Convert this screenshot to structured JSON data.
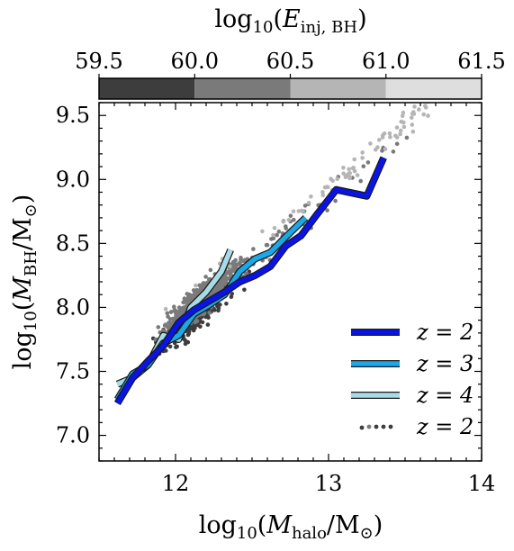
{
  "chart_data": {
    "type": "scatter",
    "xlabel": "log10(Mhalo/M⊙)",
    "ylabel": "log10(MBH/M⊙)",
    "colorbar_label": "log10(Einj,BH)",
    "xlim": [
      11.5,
      14.0
    ],
    "ylim": [
      6.8,
      9.6
    ],
    "x_ticks": [
      "12",
      "13",
      "14"
    ],
    "y_ticks": [
      "7.0",
      "7.5",
      "8.0",
      "8.5",
      "9.0",
      "9.5"
    ],
    "colorbar": {
      "range": [
        59.5,
        61.5
      ],
      "ticks": [
        "59.5",
        "60.0",
        "60.5",
        "61.0",
        "61.5"
      ],
      "bins": [
        {
          "from": 59.5,
          "to": 60.0,
          "color": "#3d3d3d"
        },
        {
          "from": 60.0,
          "to": 60.5,
          "color": "#7a7a7a"
        },
        {
          "from": 60.5,
          "to": 61.0,
          "color": "#b5b5b5"
        },
        {
          "from": 61.0,
          "to": 61.5,
          "color": "#dedede"
        }
      ]
    },
    "legend_position": "lower right",
    "series": [
      {
        "name": "z = 2",
        "kind": "line",
        "color": "#0a14e6",
        "x": [
          11.62,
          11.72,
          11.82,
          11.92,
          12.02,
          12.12,
          12.22,
          12.32,
          12.42,
          12.52,
          12.62,
          12.72,
          12.82,
          12.92,
          13.05,
          13.25,
          13.36
        ],
        "y": [
          7.25,
          7.45,
          7.58,
          7.7,
          7.88,
          7.98,
          8.05,
          8.12,
          8.2,
          8.25,
          8.32,
          8.48,
          8.56,
          8.72,
          8.92,
          8.87,
          9.17
        ]
      },
      {
        "name": "z = 3",
        "kind": "line",
        "color": "#1aa8e6",
        "x": [
          11.62,
          11.72,
          11.82,
          11.92,
          12.02,
          12.12,
          12.22,
          12.32,
          12.42,
          12.52,
          12.62,
          12.72,
          12.85
        ],
        "y": [
          7.28,
          7.48,
          7.55,
          7.72,
          7.78,
          7.95,
          8.02,
          8.1,
          8.28,
          8.38,
          8.43,
          8.55,
          8.7
        ]
      },
      {
        "name": "z = 4",
        "kind": "line",
        "color": "#a8dbe6",
        "x": [
          11.62,
          11.72,
          11.82,
          11.92,
          12.02,
          12.1,
          12.2,
          12.3,
          12.36
        ],
        "y": [
          7.4,
          7.45,
          7.55,
          7.78,
          7.75,
          8.0,
          8.12,
          8.28,
          8.45
        ]
      },
      {
        "name": "z = 2",
        "kind": "scatter",
        "color": "#3d3d3d",
        "seed": 7,
        "count": 1200
      }
    ],
    "scatter_relation": {
      "x_center": 12.15,
      "x_spread": 0.3,
      "y_at_12": 7.85,
      "slope": 1.05,
      "y_scatter": 0.18
    }
  }
}
